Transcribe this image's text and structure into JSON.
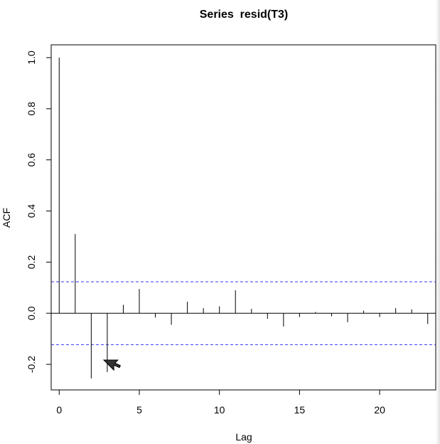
{
  "chart_data": {
    "type": "bar",
    "title": "Series  resid(T3)",
    "xlabel": "Lag",
    "ylabel": "ACF",
    "xlim": [
      -0.5,
      23.5
    ],
    "ylim": [
      -0.3,
      1.05
    ],
    "x_ticks": [
      0,
      5,
      10,
      15,
      20
    ],
    "y_ticks": [
      -0.2,
      0.0,
      0.2,
      0.4,
      0.6,
      0.8,
      1.0
    ],
    "y_tick_labels": [
      "-0.2",
      "0.0",
      "0.2",
      "0.4",
      "0.6",
      "0.8",
      "1.0"
    ],
    "confidence_bounds": [
      0.123,
      -0.123
    ],
    "confidence_color": "#3333ff",
    "grid": false,
    "lags": [
      0,
      1,
      2,
      3,
      4,
      5,
      6,
      7,
      8,
      9,
      10,
      11,
      12,
      13,
      14,
      15,
      16,
      17,
      18,
      19,
      20,
      21,
      22,
      23
    ],
    "acf": [
      1.0,
      0.31,
      -0.255,
      -0.23,
      0.033,
      0.095,
      -0.017,
      -0.045,
      0.045,
      0.02,
      0.027,
      0.09,
      0.017,
      -0.022,
      -0.052,
      -0.015,
      0.005,
      -0.012,
      -0.035,
      0.01,
      -0.015,
      0.02,
      0.015,
      -0.042
    ]
  },
  "cursor_icon": "arrow-cursor-icon"
}
